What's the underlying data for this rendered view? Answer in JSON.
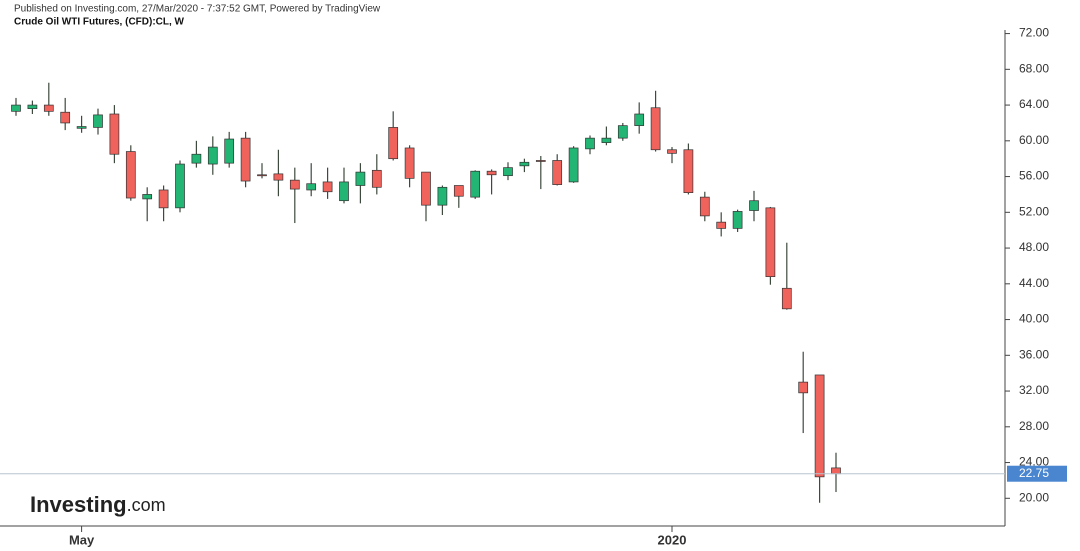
{
  "chart_data": {
    "type": "candlestick",
    "published": "Published on Investing.com, 27/Mar/2020 - 7:37:52 GMT, Powered by TradingView",
    "title": "Crude Oil WTI Futures, (CFD):CL, W",
    "brand": [
      "Investing",
      ".com"
    ],
    "categories": [
      null,
      null,
      null,
      null,
      "May",
      null,
      null,
      null,
      null,
      null,
      null,
      null,
      null,
      null,
      null,
      null,
      null,
      null,
      null,
      null,
      null,
      null,
      null,
      null,
      null,
      null,
      null,
      null,
      null,
      null,
      null,
      null,
      null,
      null,
      null,
      null,
      null,
      null,
      null,
      null,
      "2020",
      null,
      null,
      null,
      null,
      null,
      null,
      null,
      null,
      null,
      null
    ],
    "up_color": "#22b573",
    "down_color": "#f0625c",
    "series": [
      {
        "name": "open",
        "values": [
          63.3,
          63.6,
          64.0,
          63.2,
          61.4,
          61.5,
          63.0,
          58.8,
          53.5,
          54.5,
          52.5,
          57.5,
          57.4,
          57.5,
          60.3,
          56.2,
          56.3,
          55.6,
          54.5,
          55.4,
          53.3,
          55.0,
          56.7,
          61.5,
          59.2,
          56.5,
          52.8,
          55.0,
          53.7,
          56.6,
          56.1,
          57.2,
          57.8,
          57.8,
          55.4,
          59.1,
          59.8,
          60.3,
          61.7,
          63.7,
          59.0,
          59.0,
          53.7,
          50.9,
          50.2,
          52.2,
          52.5,
          43.5,
          33.0,
          33.8,
          23.4
        ]
      },
      {
        "name": "high",
        "values": [
          64.8,
          64.5,
          66.5,
          64.8,
          62.8,
          63.6,
          64.0,
          59.5,
          54.8,
          55.0,
          57.8,
          60.0,
          60.5,
          61.0,
          61.0,
          57.5,
          59.0,
          57.0,
          57.5,
          57.0,
          57.0,
          57.5,
          58.5,
          63.3,
          59.5,
          56.5,
          55.0,
          55.0,
          56.7,
          56.8,
          57.6,
          58.0,
          58.3,
          58.5,
          59.4,
          60.6,
          61.6,
          62.0,
          64.3,
          65.6,
          59.3,
          59.7,
          54.3,
          52.0,
          52.3,
          54.4,
          52.6,
          48.6,
          36.4,
          33.8,
          25.1
        ]
      },
      {
        "name": "low",
        "values": [
          62.8,
          63.0,
          62.8,
          61.2,
          60.9,
          60.7,
          57.5,
          53.3,
          51.0,
          51.0,
          52.0,
          57.0,
          56.2,
          57.0,
          54.8,
          55.8,
          53.8,
          50.8,
          53.8,
          53.5,
          53.0,
          53.0,
          54.0,
          57.8,
          54.8,
          51.0,
          51.7,
          52.5,
          53.5,
          54.0,
          55.6,
          56.5,
          54.6,
          55.0,
          55.3,
          58.5,
          59.5,
          60.0,
          60.8,
          58.8,
          57.5,
          54.0,
          51.0,
          49.3,
          49.8,
          51.0,
          43.9,
          41.1,
          27.3,
          19.5,
          20.7
        ]
      },
      {
        "name": "close",
        "values": [
          64.0,
          64.0,
          63.3,
          62.0,
          61.6,
          62.9,
          58.5,
          53.6,
          54.0,
          52.5,
          57.4,
          58.5,
          59.3,
          60.2,
          55.5,
          56.1,
          55.6,
          54.6,
          55.2,
          54.3,
          55.4,
          56.5,
          54.8,
          58.0,
          55.8,
          52.8,
          54.8,
          53.8,
          56.6,
          56.2,
          57.0,
          57.6,
          57.7,
          55.1,
          59.2,
          60.3,
          60.3,
          61.7,
          63.0,
          59.0,
          58.6,
          54.2,
          51.6,
          50.2,
          52.1,
          53.3,
          44.8,
          41.2,
          31.8,
          22.4,
          22.75
        ]
      }
    ],
    "last_price": 22.75,
    "ylim": [
      16.9,
      72.4
    ],
    "yticks": [
      {
        "value": 20,
        "label": "20.00"
      },
      {
        "value": 24,
        "label": "24.00"
      },
      {
        "value": 28,
        "label": "28.00"
      },
      {
        "value": 32,
        "label": "32.00"
      },
      {
        "value": 36,
        "label": "36.00"
      },
      {
        "value": 40,
        "label": "40.00"
      },
      {
        "value": 44,
        "label": "44.00"
      },
      {
        "value": 48,
        "label": "48.00"
      },
      {
        "value": 52,
        "label": "52.00"
      },
      {
        "value": 56,
        "label": "56.00"
      },
      {
        "value": 60,
        "label": "60.00"
      },
      {
        "value": 64,
        "label": "64.00"
      },
      {
        "value": 68,
        "label": "68.00"
      },
      {
        "value": 72,
        "label": "72.00"
      }
    ]
  }
}
